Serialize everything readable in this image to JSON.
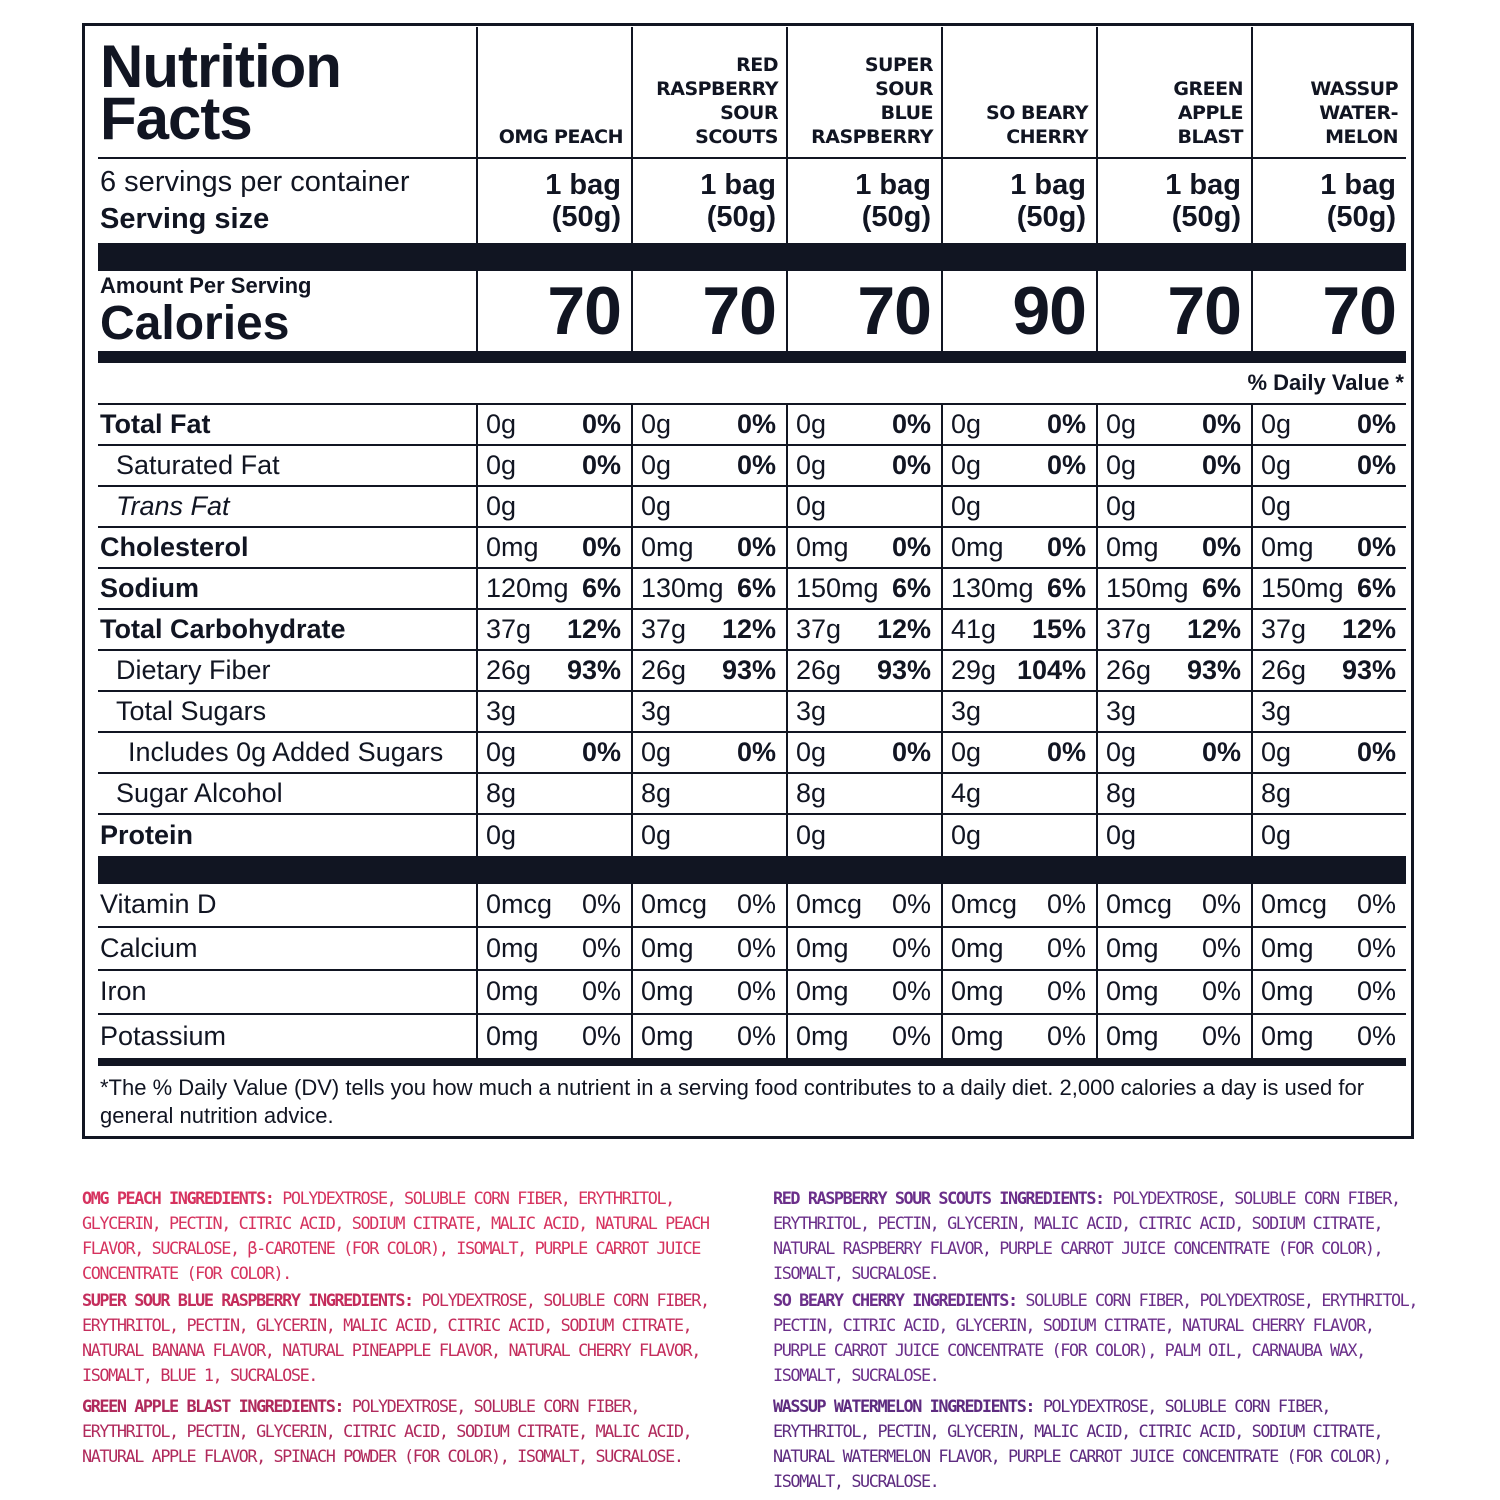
{
  "panel": {
    "title_line1": "Nutrition",
    "title_line2": "Facts",
    "servings_per_container": "6 servings per container",
    "serving_size_label": "Serving size",
    "amount_per_serving": "Amount Per Serving",
    "calories_label": "Calories",
    "daily_value_header": "% Daily Value *",
    "footnote": "*The % Daily Value (DV) tells you how much a nutrient in a serving food contributes to a daily diet. 2,000 calories a day is used for general nutrition advice."
  },
  "flavors": [
    {
      "name": "OMG PEACH",
      "serving_line1": "1 bag",
      "serving_line2": "(50g)",
      "calories": "70"
    },
    {
      "name": "RED\nRASPBERRY\nSOUR\nSCOUTS",
      "serving_line1": "1 bag",
      "serving_line2": "(50g)",
      "calories": "70"
    },
    {
      "name": "SUPER\nSOUR\nBLUE\nRASPBERRY",
      "serving_line1": "1 bag",
      "serving_line2": "(50g)",
      "calories": "70"
    },
    {
      "name": "SO BEARY\nCHERRY",
      "serving_line1": "1 bag",
      "serving_line2": "(50g)",
      "calories": "90"
    },
    {
      "name": "GREEN\nAPPLE\nBLAST",
      "serving_line1": "1 bag",
      "serving_line2": "(50g)",
      "calories": "70"
    },
    {
      "name": "WASSUP\nWATER-\nMELON",
      "serving_line1": "1 bag",
      "serving_line2": "(50g)",
      "calories": "70"
    }
  ],
  "nutrients": [
    {
      "label": "Total Fat",
      "values": [
        [
          "0g",
          "0%"
        ],
        [
          "0g",
          "0%"
        ],
        [
          "0g",
          "0%"
        ],
        [
          "0g",
          "0%"
        ],
        [
          "0g",
          "0%"
        ],
        [
          "0g",
          "0%"
        ]
      ]
    },
    {
      "label": "Saturated Fat",
      "values": [
        [
          "0g",
          "0%"
        ],
        [
          "0g",
          "0%"
        ],
        [
          "0g",
          "0%"
        ],
        [
          "0g",
          "0%"
        ],
        [
          "0g",
          "0%"
        ],
        [
          "0g",
          "0%"
        ]
      ]
    },
    {
      "label": "Trans Fat",
      "values": [
        [
          "0g",
          ""
        ],
        [
          "0g",
          ""
        ],
        [
          "0g",
          ""
        ],
        [
          "0g",
          ""
        ],
        [
          "0g",
          ""
        ],
        [
          "0g",
          ""
        ]
      ]
    },
    {
      "label": "Cholesterol",
      "values": [
        [
          "0mg",
          "0%"
        ],
        [
          "0mg",
          "0%"
        ],
        [
          "0mg",
          "0%"
        ],
        [
          "0mg",
          "0%"
        ],
        [
          "0mg",
          "0%"
        ],
        [
          "0mg",
          "0%"
        ]
      ]
    },
    {
      "label": "Sodium",
      "values": [
        [
          "120mg",
          "6%"
        ],
        [
          "130mg",
          "6%"
        ],
        [
          "150mg",
          "6%"
        ],
        [
          "130mg",
          "6%"
        ],
        [
          "150mg",
          "6%"
        ],
        [
          "150mg",
          "6%"
        ]
      ]
    },
    {
      "label": "Total Carbohydrate",
      "values": [
        [
          "37g",
          "12%"
        ],
        [
          "37g",
          "12%"
        ],
        [
          "37g",
          "12%"
        ],
        [
          "41g",
          "15%"
        ],
        [
          "37g",
          "12%"
        ],
        [
          "37g",
          "12%"
        ]
      ]
    },
    {
      "label": "Dietary Fiber",
      "values": [
        [
          "26g",
          "93%"
        ],
        [
          "26g",
          "93%"
        ],
        [
          "26g",
          "93%"
        ],
        [
          "29g",
          "104%"
        ],
        [
          "26g",
          "93%"
        ],
        [
          "26g",
          "93%"
        ]
      ]
    },
    {
      "label": "Total Sugars",
      "values": [
        [
          "3g",
          ""
        ],
        [
          "3g",
          ""
        ],
        [
          "3g",
          ""
        ],
        [
          "3g",
          ""
        ],
        [
          "3g",
          ""
        ],
        [
          "3g",
          ""
        ]
      ]
    },
    {
      "label": "Includes  0g  Added Sugars",
      "values": [
        [
          "0g",
          "0%"
        ],
        [
          "0g",
          "0%"
        ],
        [
          "0g",
          "0%"
        ],
        [
          "0g",
          "0%"
        ],
        [
          "0g",
          "0%"
        ],
        [
          "0g",
          "0%"
        ]
      ]
    },
    {
      "label": "Sugar Alcohol",
      "values": [
        [
          "8g",
          ""
        ],
        [
          "8g",
          ""
        ],
        [
          "8g",
          ""
        ],
        [
          "4g",
          ""
        ],
        [
          "8g",
          ""
        ],
        [
          "8g",
          ""
        ]
      ]
    },
    {
      "label": "Protein",
      "values": [
        [
          "0g",
          ""
        ],
        [
          "0g",
          ""
        ],
        [
          "0g",
          ""
        ],
        [
          "0g",
          ""
        ],
        [
          "0g",
          ""
        ],
        [
          "0g",
          ""
        ]
      ]
    }
  ],
  "vitamins": [
    {
      "label": "Vitamin D",
      "values": [
        [
          "0mcg",
          "0%"
        ],
        [
          "0mcg",
          "0%"
        ],
        [
          "0mcg",
          "0%"
        ],
        [
          "0mcg",
          "0%"
        ],
        [
          "0mcg",
          "0%"
        ],
        [
          "0mcg",
          "0%"
        ]
      ]
    },
    {
      "label": "Calcium",
      "values": [
        [
          "0mg",
          "0%"
        ],
        [
          "0mg",
          "0%"
        ],
        [
          "0mg",
          "0%"
        ],
        [
          "0mg",
          "0%"
        ],
        [
          "0mg",
          "0%"
        ],
        [
          "0mg",
          "0%"
        ]
      ]
    },
    {
      "label": "Iron",
      "values": [
        [
          "0mg",
          "0%"
        ],
        [
          "0mg",
          "0%"
        ],
        [
          "0mg",
          "0%"
        ],
        [
          "0mg",
          "0%"
        ],
        [
          "0mg",
          "0%"
        ],
        [
          "0mg",
          "0%"
        ]
      ]
    },
    {
      "label": "Potassium",
      "values": [
        [
          "0mg",
          "0%"
        ],
        [
          "0mg",
          "0%"
        ],
        [
          "0mg",
          "0%"
        ],
        [
          "0mg",
          "0%"
        ],
        [
          "0mg",
          "0%"
        ],
        [
          "0mg",
          "0%"
        ]
      ]
    }
  ],
  "ingredients": [
    {
      "name": "OMG PEACH INGREDIENTS:",
      "text": "POLYDEXTROSE, SOLUBLE CORN FIBER, ERYTHRITOL, GLYCERIN, PECTIN, CITRIC ACID, SODIUM CITRATE, MALIC ACID, NATURAL PEACH FLAVOR, SUCRALOSE, β-CAROTENE (FOR COLOR), ISOMALT, PURPLE CARROT JUICE CONCENTRATE (FOR COLOR).",
      "color": "#d6335f"
    },
    {
      "name": "RED RASPBERRY SOUR SCOUTS INGREDIENTS:",
      "text": "POLYDEXTROSE, SOLUBLE CORN FIBER, ERYTHRITOL, PECTIN, GLYCERIN, MALIC ACID, CITRIC ACID, SODIUM CITRATE, NATURAL RASPBERRY FLAVOR, PURPLE CARROT JUICE CONCENTRATE (FOR COLOR), ISOMALT, SUCRALOSE.",
      "color": "#6b2f8a"
    },
    {
      "name": "SUPER SOUR BLUE RASPBERRY INGREDIENTS:",
      "text": "POLYDEXTROSE, SOLUBLE CORN FIBER, ERYTHRITOL, PECTIN, GLYCERIN, MALIC ACID, CITRIC ACID, SODIUM CITRATE, NATURAL BANANA FLAVOR, NATURAL PINEAPPLE FLAVOR, NATURAL CHERRY FLAVOR, ISOMALT, BLUE 1, SUCRALOSE.",
      "color": "#c42d5c"
    },
    {
      "name": "SO BEARY CHERRY INGREDIENTS:",
      "text": "SOLUBLE CORN FIBER, POLYDEXTROSE, ERYTHRITOL, PECTIN, CITRIC ACID, GLYCERIN, SODIUM CITRATE, NATURAL CHERRY FLAVOR, PURPLE CARROT JUICE CONCENTRATE (FOR COLOR), PALM OIL, CARNAUBA WAX, ISOMALT, SUCRALOSE.",
      "color": "#6b2f8a"
    },
    {
      "name": "GREEN APPLE BLAST INGREDIENTS:",
      "text": "POLYDEXTROSE, SOLUBLE CORN FIBER, ERYTHRITOL, PECTIN, GLYCERIN, CITRIC ACID, SODIUM CITRATE, MALIC ACID, NATURAL APPLE FLAVOR, SPINACH POWDER (FOR COLOR), ISOMALT, SUCRALOSE.",
      "color": "#b02a5c"
    },
    {
      "name": "WASSUP WATERMELON INGREDIENTS:",
      "text": "POLYDEXTROSE, SOLUBLE CORN FIBER, ERYTHRITOL, PECTIN, GLYCERIN, MALIC ACID, CITRIC ACID, SODIUM CITRATE, NATURAL WATERMELON FLAVOR, PURPLE CARROT JUICE CONCENTRATE (FOR COLOR), ISOMALT, SUCRALOSE.",
      "color": "#5e2b80"
    }
  ]
}
